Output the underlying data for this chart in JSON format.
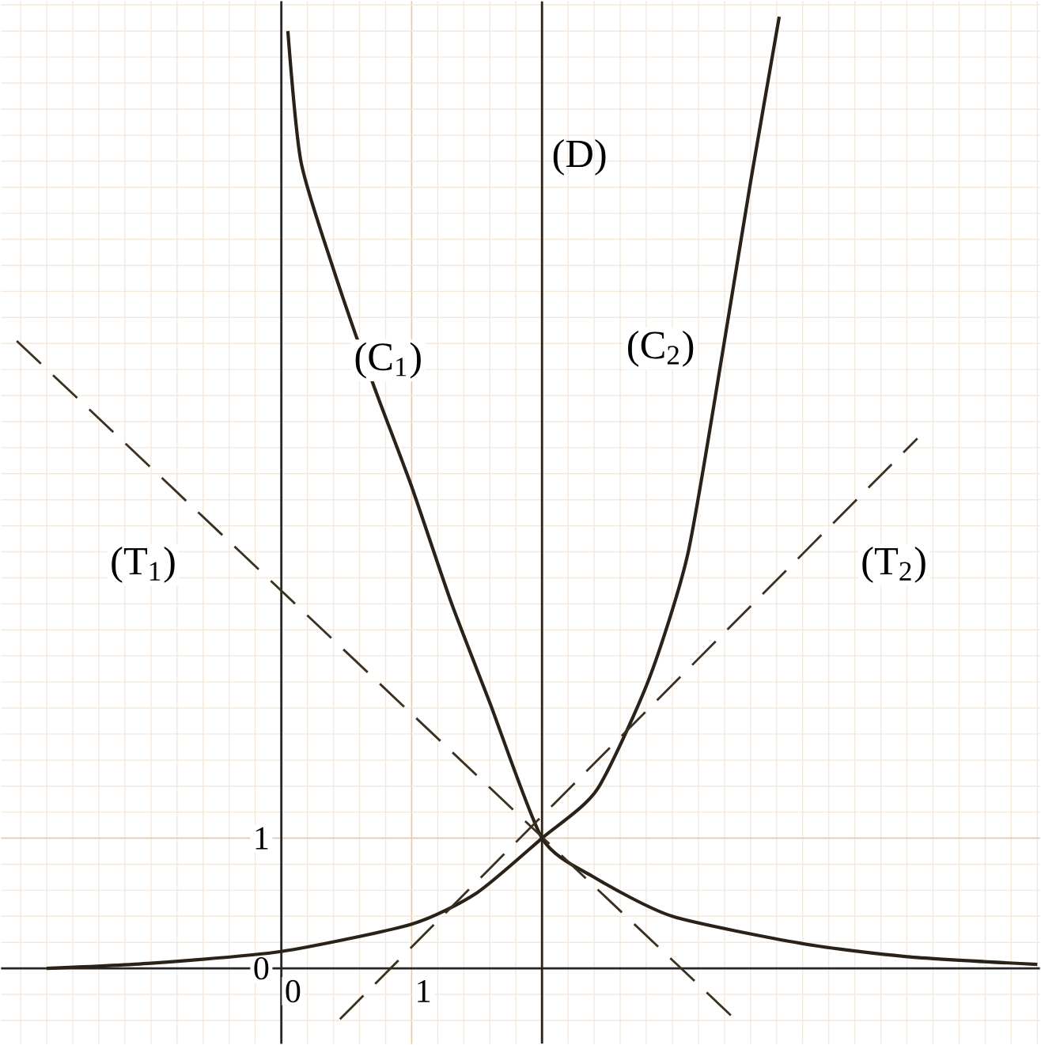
{
  "chart_data": {
    "type": "line",
    "xlim": [
      -2.15,
      5.82
    ],
    "ylim": [
      -0.58,
      7.43
    ],
    "xticks": [
      0,
      1
    ],
    "yticks": [
      0,
      1
    ],
    "grid": true,
    "marker": "none",
    "series": [
      {
        "name": "(C$_{1}$)",
        "color": "#2a2118",
        "line_style": "solid",
        "x": [
          0.05,
          0.15,
          0.39,
          0.7,
          1.0,
          1.3,
          1.6,
          2.0,
          2.4,
          3.0,
          4.0,
          4.8,
          5.8
        ],
        "values": [
          7.2,
          6.2,
          5.4,
          4.5,
          3.7,
          2.82,
          2.04,
          1.0,
          0.7,
          0.4,
          0.19,
          0.09,
          0.03
        ]
      },
      {
        "name": "(C$_{2}$)",
        "color": "#2a2118",
        "line_style": "solid",
        "x": [
          -1.8,
          -1.0,
          0,
          1.0,
          1.5,
          2.0,
          2.42,
          2.82,
          3.12,
          3.39,
          3.6,
          3.82
        ],
        "values": [
          0.0,
          0.04,
          0.13,
          0.34,
          0.58,
          1.0,
          1.37,
          2.22,
          3.19,
          4.76,
          6.04,
          7.31
        ]
      },
      {
        "name": "(T$_{1}$)",
        "color": "#3a3020",
        "line_style": "dashed",
        "x": [
          -2.03,
          3.48
        ],
        "values": [
          4.82,
          -0.39
        ]
      },
      {
        "name": "(T$_{2}$)",
        "color": "#3a3020",
        "line_style": "dashed",
        "x": [
          0.45,
          4.88
        ],
        "values": [
          -0.39,
          4.07
        ]
      }
    ],
    "ref_lines": [
      {
        "axis": "x",
        "value": 2,
        "label": "(D)",
        "color": "#2a2118"
      }
    ]
  }
}
